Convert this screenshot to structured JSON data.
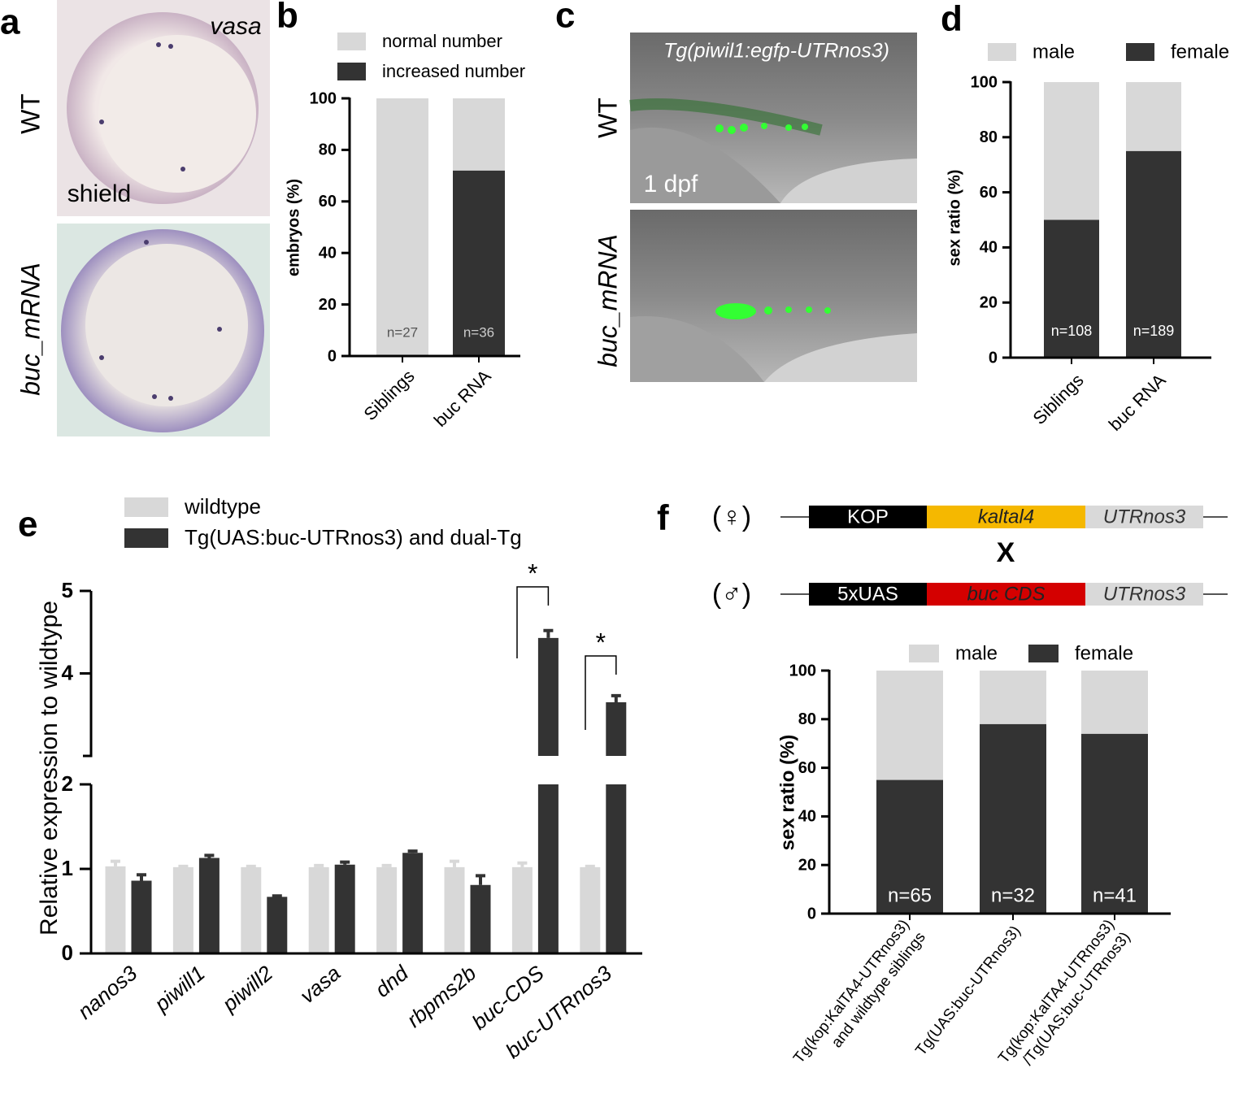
{
  "figure": {
    "panel_a": {
      "letter": "a",
      "stain": "vasa",
      "stage": "shield",
      "rows": [
        "WT",
        "buc_mRNA"
      ]
    },
    "panel_c": {
      "letter": "c",
      "transgene": "Tg(piwil1:egfp-UTRnos3)",
      "stage": "1 dpf",
      "rows": [
        "WT",
        "buc_mRNA"
      ]
    },
    "panel_e_letter": "e"
  },
  "diagram": {
    "letter": "f",
    "cross": "X",
    "constructs": [
      {
        "parent": "(♀)",
        "parts": [
          {
            "label": "KOP",
            "color": "#000000"
          },
          {
            "label": "kaltal4",
            "color": "#f5b800"
          },
          {
            "label": "UTRnos3",
            "color": "#d9d9d9"
          }
        ]
      },
      {
        "parent": "(♂)",
        "parts": [
          {
            "label": "5xUAS",
            "color": "#000000"
          },
          {
            "label": "buc CDS",
            "color": "#d40000"
          },
          {
            "label": "UTRnos3",
            "color": "#d9d9d9"
          }
        ]
      }
    ]
  },
  "chart_data": [
    {
      "type": "stacked_bar",
      "panel": "b",
      "ylabel": "embryos (%)",
      "categories": [
        "Siblings",
        "buc RNA"
      ],
      "series": [
        {
          "name": "normal number",
          "color": "#d8d8d8",
          "values": [
            100,
            28
          ]
        },
        {
          "name": "increased number",
          "color": "#333333",
          "values": [
            0,
            72
          ]
        }
      ],
      "annotations": [
        "n=27",
        "n=36"
      ],
      "ylim": [
        0,
        100
      ],
      "yticks": [
        0,
        20,
        40,
        60,
        80,
        100
      ]
    },
    {
      "type": "stacked_bar",
      "panel": "d",
      "ylabel": "sex ratio (%)",
      "categories": [
        "Siblings",
        "buc RNA"
      ],
      "series": [
        {
          "name": "male",
          "color": "#d8d8d8",
          "values": [
            50,
            25
          ]
        },
        {
          "name": "female",
          "color": "#333333",
          "values": [
            50,
            75
          ]
        }
      ],
      "annotations": [
        "n=108",
        "n=189"
      ],
      "ylim": [
        0,
        100
      ],
      "yticks": [
        0,
        20,
        40,
        60,
        80,
        100
      ]
    },
    {
      "type": "bar",
      "panel": "e",
      "ylabel": "Relative expression to wildtype",
      "categories": [
        "nanos3",
        "piwill1",
        "piwill2",
        "vasa",
        "dnd",
        "rbpms2b",
        "buc-CDS",
        "buc-UTRnos3"
      ],
      "series": [
        {
          "name": "wildtype",
          "color": "#d8d8d8",
          "values": [
            1.03,
            1.02,
            1.02,
            1.02,
            1.02,
            1.02,
            1.02,
            1.02
          ],
          "errors": [
            0.06,
            0.01,
            0.01,
            0.02,
            0.02,
            0.07,
            0.05,
            0.01
          ]
        },
        {
          "name": "Tg(UAS:buc-UTRnos3) and dual-Tg",
          "color": "#333333",
          "values": [
            0.86,
            1.13,
            0.67,
            1.05,
            1.19,
            0.81,
            4.43,
            3.65
          ],
          "errors": [
            0.07,
            0.03,
            0.01,
            0.03,
            0.02,
            0.11,
            0.09,
            0.08
          ]
        }
      ],
      "annotations": [
        "*",
        "*"
      ],
      "ylim": [
        0,
        5
      ],
      "axis_break": [
        2,
        3
      ],
      "yticks": [
        0,
        1,
        2,
        4,
        5
      ]
    },
    {
      "type": "stacked_bar",
      "ylabel": "sex ratio (%)",
      "categories": [
        [
          "Tg(kop:KalTA4-UTRnos3)",
          "and wildtype siblings"
        ],
        [
          "Tg(UAS:buc-UTRnos3)"
        ],
        [
          "Tg(kop:KalTA4-UTRnos3)",
          "/Tg(UAS:buc-UTRnos3)"
        ]
      ],
      "series": [
        {
          "name": "male",
          "color": "#d8d8d8",
          "values": [
            45,
            22,
            26
          ]
        },
        {
          "name": "female",
          "color": "#333333",
          "values": [
            55,
            78,
            74
          ]
        }
      ],
      "annotations": [
        "n=65",
        "n=32",
        "n=41"
      ],
      "ylim": [
        0,
        100
      ],
      "yticks": [
        0,
        20,
        40,
        60,
        80,
        100
      ]
    }
  ]
}
